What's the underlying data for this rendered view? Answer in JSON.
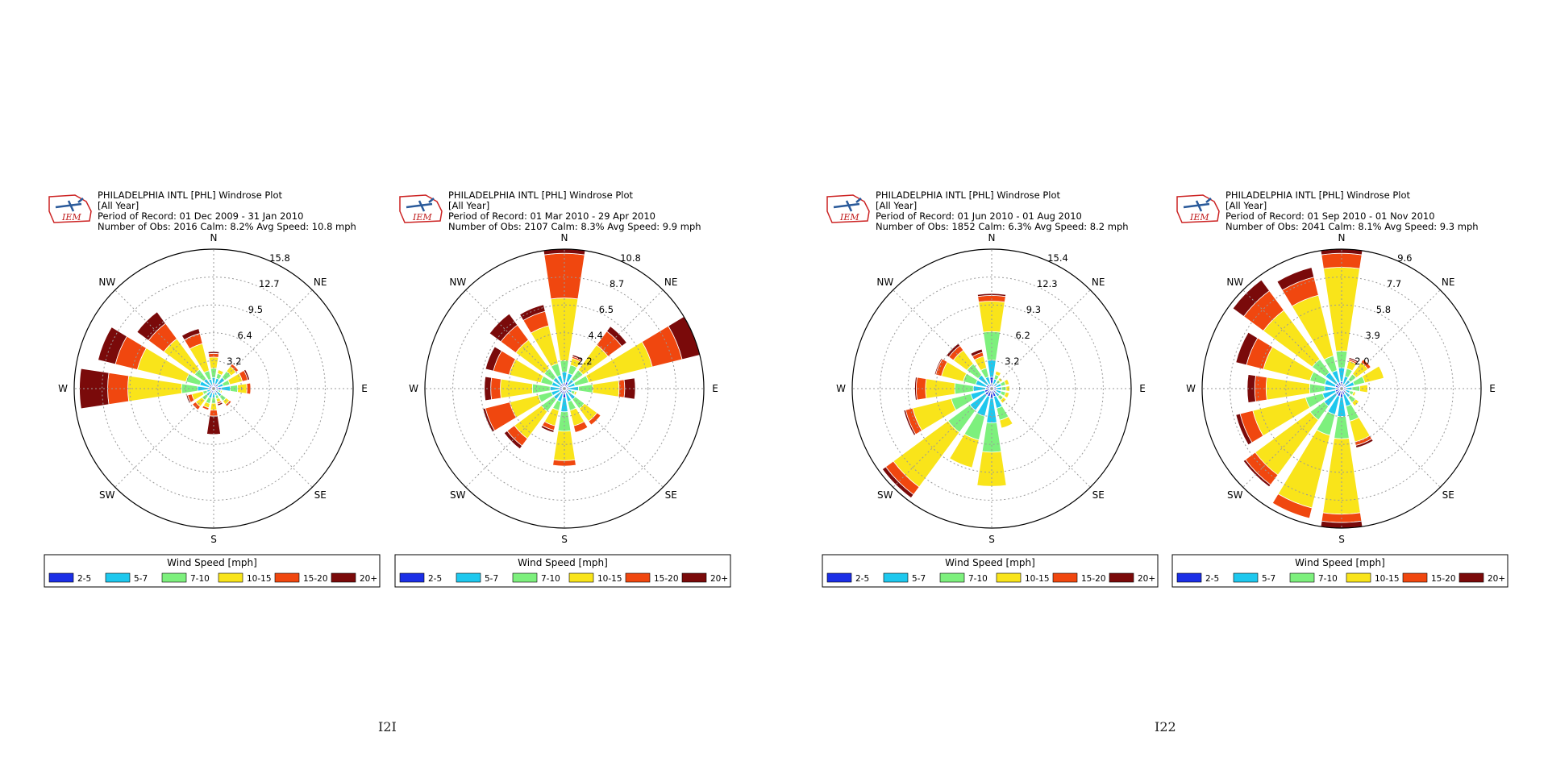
{
  "page_numbers": [
    "I2I",
    "I22"
  ],
  "legend": {
    "title": "Wind Speed [mph]",
    "bins": [
      "2-5",
      "5-7",
      "7-10",
      "10-15",
      "15-20",
      "20+"
    ],
    "colors": [
      "#1b2fe6",
      "#1ec8ee",
      "#7df07d",
      "#f9e41a",
      "#f0470f",
      "#7a0a0a"
    ]
  },
  "logo_text": "IEM",
  "direction_labels": [
    "N",
    "NE",
    "E",
    "SE",
    "S",
    "SW",
    "W",
    "NW"
  ],
  "chart_data": [
    {
      "type": "windrose",
      "title": "PHILADELPHIA INTL [PHL] Windrose Plot",
      "subtitle": "[All Year]",
      "period": "Period of Record: 01 Dec 2009 - 31 Jan 2010",
      "stats": "Number of Obs: 2016   Calm: 8.2%   Avg Speed: 10.8 mph",
      "rings": [
        "3.2",
        "6.4",
        "9.5",
        "12.7",
        "15.8"
      ],
      "rmax": 15.8,
      "directions": [
        "N",
        "NNE",
        "NE",
        "ENE",
        "E",
        "ESE",
        "SE",
        "SSE",
        "S",
        "SSW",
        "SW",
        "WSW",
        "W",
        "WNW",
        "NW",
        "NNW"
      ],
      "totals": [
        4.2,
        2.2,
        3.5,
        4.2,
        4.2,
        1.0,
        2.5,
        2.0,
        5.2,
        2.5,
        3.0,
        3.2,
        15.2,
        13.5,
        10.8,
        7.0
      ],
      "profile": [
        [
          0.1,
          0.2,
          0.25,
          0.3,
          0.1,
          0.05
        ],
        [
          0.25,
          0.3,
          0.25,
          0.2,
          0,
          0
        ],
        [
          0.2,
          0.25,
          0.25,
          0.2,
          0.1,
          0
        ],
        [
          0.12,
          0.15,
          0.18,
          0.35,
          0.15,
          0.05
        ],
        [
          0.2,
          0.25,
          0.2,
          0.25,
          0.1,
          0
        ],
        [
          0.3,
          0.3,
          0.25,
          0.15,
          0,
          0
        ],
        [
          0.2,
          0.25,
          0.25,
          0.2,
          0.1,
          0
        ],
        [
          0.2,
          0.2,
          0.2,
          0.2,
          0.1,
          0.1
        ],
        [
          0.08,
          0.12,
          0.12,
          0.15,
          0.13,
          0.4
        ],
        [
          0.2,
          0.25,
          0.25,
          0.2,
          0.1,
          0
        ],
        [
          0.15,
          0.2,
          0.2,
          0.3,
          0.15,
          0
        ],
        [
          0.1,
          0.15,
          0.15,
          0.4,
          0.15,
          0.05
        ],
        [
          0.04,
          0.08,
          0.12,
          0.4,
          0.15,
          0.21
        ],
        [
          0.04,
          0.08,
          0.12,
          0.42,
          0.19,
          0.15
        ],
        [
          0.05,
          0.08,
          0.12,
          0.4,
          0.2,
          0.15
        ],
        [
          0.06,
          0.1,
          0.14,
          0.45,
          0.17,
          0.08
        ]
      ]
    },
    {
      "type": "windrose",
      "title": "PHILADELPHIA INTL [PHL] Windrose Plot",
      "subtitle": "[All Year]",
      "period": "Period of Record: 01 Mar 2010 - 29 Apr 2010",
      "stats": "Number of Obs: 2107   Calm: 8.3%   Avg Speed: 9.9 mph",
      "rings": [
        "2.2",
        "4.4",
        "6.5",
        "8.7",
        "10.8"
      ],
      "rmax": 10.8,
      "directions": [
        "N",
        "NNE",
        "NE",
        "ENE",
        "E",
        "ESE",
        "SE",
        "SSE",
        "S",
        "SSW",
        "SW",
        "WSW",
        "W",
        "WNW",
        "NW",
        "NNW"
      ],
      "totals": [
        10.8,
        2.7,
        6.0,
        10.8,
        5.5,
        1.0,
        3.5,
        3.5,
        6.0,
        3.5,
        5.8,
        6.5,
        6.2,
        6.3,
        7.2,
        6.7
      ],
      "profile": [
        [
          0.04,
          0.08,
          0.08,
          0.45,
          0.32,
          0.03
        ],
        [
          0.2,
          0.25,
          0.25,
          0.2,
          0.05,
          0.05
        ],
        [
          0.05,
          0.1,
          0.15,
          0.4,
          0.22,
          0.08
        ],
        [
          0.03,
          0.05,
          0.1,
          0.47,
          0.22,
          0.13
        ],
        [
          0.06,
          0.14,
          0.2,
          0.37,
          0.08,
          0.15
        ],
        [
          0.3,
          0.3,
          0.25,
          0.15,
          0,
          0
        ],
        [
          0.1,
          0.2,
          0.25,
          0.35,
          0.1,
          0
        ],
        [
          0.1,
          0.2,
          0.2,
          0.35,
          0.15,
          0
        ],
        [
          0.12,
          0.18,
          0.25,
          0.38,
          0.07,
          0
        ],
        [
          0.12,
          0.18,
          0.2,
          0.35,
          0.1,
          0.05
        ],
        [
          0.06,
          0.12,
          0.2,
          0.45,
          0.12,
          0.05
        ],
        [
          0.06,
          0.1,
          0.16,
          0.35,
          0.3,
          0.03
        ],
        [
          0.06,
          0.12,
          0.22,
          0.4,
          0.12,
          0.08
        ],
        [
          0.06,
          0.1,
          0.14,
          0.4,
          0.2,
          0.1
        ],
        [
          0.05,
          0.1,
          0.12,
          0.38,
          0.2,
          0.15
        ],
        [
          0.06,
          0.1,
          0.14,
          0.45,
          0.17,
          0.08
        ]
      ]
    },
    {
      "type": "windrose",
      "title": "PHILADELPHIA INTL [PHL] Windrose Plot",
      "subtitle": "[All Year]",
      "period": "Period of Record: 01 Jun 2010 - 01 Aug 2010",
      "stats": "Number of Obs: 1852   Calm: 6.3%   Avg Speed: 8.2 mph",
      "rings": [
        "3.2",
        "6.2",
        "9.3",
        "12.3",
        "15.4"
      ],
      "rmax": 15.4,
      "directions": [
        "N",
        "NNE",
        "NE",
        "ENE",
        "E",
        "ESE",
        "SE",
        "SSE",
        "S",
        "SSW",
        "SW",
        "WSW",
        "W",
        "WNW",
        "NW",
        "NNW"
      ],
      "totals": [
        10.5,
        2.0,
        1.5,
        2.0,
        2.0,
        2.0,
        2.0,
        4.5,
        10.8,
        9.0,
        15.0,
        10.0,
        8.5,
        6.5,
        6.2,
        4.5
      ],
      "profile": [
        [
          0.12,
          0.18,
          0.3,
          0.32,
          0.06,
          0.02
        ],
        [
          0.25,
          0.3,
          0.25,
          0.2,
          0,
          0
        ],
        [
          0.25,
          0.3,
          0.25,
          0.2,
          0,
          0
        ],
        [
          0.25,
          0.3,
          0.25,
          0.2,
          0,
          0
        ],
        [
          0.25,
          0.3,
          0.25,
          0.2,
          0,
          0
        ],
        [
          0.25,
          0.3,
          0.25,
          0.2,
          0,
          0
        ],
        [
          0.25,
          0.3,
          0.25,
          0.2,
          0,
          0
        ],
        [
          0.2,
          0.3,
          0.3,
          0.2,
          0,
          0
        ],
        [
          0.1,
          0.25,
          0.3,
          0.35,
          0,
          0
        ],
        [
          0.1,
          0.25,
          0.3,
          0.35,
          0,
          0
        ],
        [
          0.06,
          0.14,
          0.2,
          0.5,
          0.07,
          0.03
        ],
        [
          0.08,
          0.16,
          0.22,
          0.44,
          0.08,
          0.02
        ],
        [
          0.08,
          0.16,
          0.24,
          0.38,
          0.12,
          0.02
        ],
        [
          0.1,
          0.18,
          0.22,
          0.38,
          0.1,
          0.02
        ],
        [
          0.1,
          0.2,
          0.25,
          0.3,
          0.1,
          0.05
        ],
        [
          0.12,
          0.18,
          0.22,
          0.3,
          0.1,
          0.08
        ]
      ]
    },
    {
      "type": "windrose",
      "title": "PHILADELPHIA INTL [PHL] Windrose Plot",
      "subtitle": "[All Year]",
      "period": "Period of Record: 01 Sep 2010 - 01 Nov 2010",
      "stats": "Number of Obs: 2041   Calm: 8.1%   Avg Speed: 9.3 mph",
      "rings": [
        "2.0",
        "3.9",
        "5.8",
        "7.7",
        "9.6"
      ],
      "rmax": 9.6,
      "directions": [
        "N",
        "NNE",
        "NE",
        "ENE",
        "E",
        "ESE",
        "SE",
        "SSE",
        "S",
        "SSW",
        "SW",
        "WSW",
        "W",
        "WNW",
        "NW",
        "NNW"
      ],
      "totals": [
        9.6,
        2.2,
        2.5,
        3.0,
        1.8,
        1.0,
        1.5,
        4.2,
        9.6,
        9.2,
        8.4,
        7.5,
        6.5,
        7.5,
        9.3,
        8.6
      ],
      "profile": [
        [
          0.05,
          0.1,
          0.12,
          0.6,
          0.1,
          0.03
        ],
        [
          0.15,
          0.25,
          0.25,
          0.25,
          0.05,
          0.05
        ],
        [
          0.1,
          0.2,
          0.2,
          0.4,
          0.1,
          0
        ],
        [
          0.1,
          0.2,
          0.25,
          0.45,
          0,
          0
        ],
        [
          0.15,
          0.25,
          0.3,
          0.3,
          0,
          0
        ],
        [
          0.3,
          0.3,
          0.25,
          0.15,
          0,
          0
        ],
        [
          0.2,
          0.3,
          0.3,
          0.2,
          0,
          0
        ],
        [
          0.1,
          0.2,
          0.25,
          0.35,
          0.06,
          0.04
        ],
        [
          0.06,
          0.14,
          0.16,
          0.54,
          0.06,
          0.04
        ],
        [
          0.06,
          0.14,
          0.16,
          0.56,
          0.08,
          0
        ],
        [
          0.06,
          0.12,
          0.14,
          0.56,
          0.1,
          0.02
        ],
        [
          0.06,
          0.12,
          0.16,
          0.5,
          0.12,
          0.04
        ],
        [
          0.06,
          0.12,
          0.16,
          0.46,
          0.12,
          0.08
        ],
        [
          0.06,
          0.1,
          0.14,
          0.44,
          0.16,
          0.1
        ],
        [
          0.05,
          0.1,
          0.12,
          0.45,
          0.18,
          0.1
        ],
        [
          0.05,
          0.1,
          0.12,
          0.5,
          0.15,
          0.08
        ]
      ]
    }
  ]
}
